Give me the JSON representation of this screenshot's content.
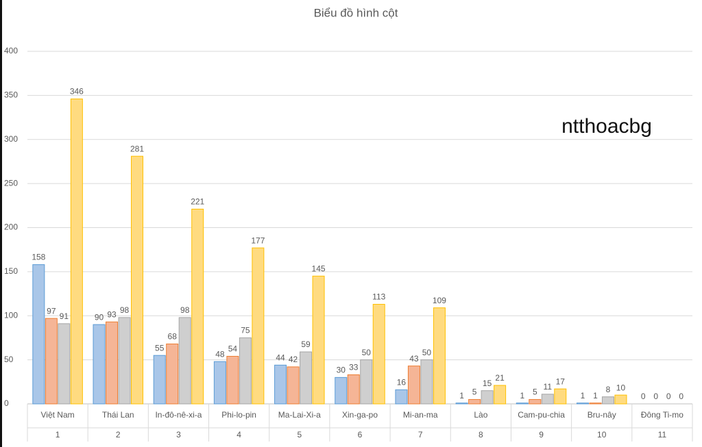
{
  "chart_data": {
    "type": "bar",
    "title": "Biểu đồ hình cột",
    "annotation": "ntthoacbg",
    "categories": [
      "Việt Nam",
      "Thái Lan",
      "In-đô-nê-xi-a",
      "Phi-lo-pin",
      "Ma-Lai-Xi-a",
      "Xin-ga-po",
      "Mi-an-ma",
      "Lào",
      "Cam-pu-chia",
      "Bru-nây",
      "Đông Ti-mo"
    ],
    "category_numbers": [
      "1",
      "2",
      "3",
      "4",
      "5",
      "6",
      "7",
      "8",
      "9",
      "10",
      "11"
    ],
    "series": [
      {
        "color": "#a9c6e8",
        "edgecolor": "#5b9bd5",
        "values": [
          158,
          90,
          55,
          48,
          44,
          30,
          16,
          1,
          1,
          1,
          0
        ]
      },
      {
        "color": "#f5b596",
        "edgecolor": "#ed7d31",
        "values": [
          97,
          93,
          68,
          54,
          42,
          33,
          43,
          5,
          5,
          1,
          0
        ]
      },
      {
        "color": "#cfcfcf",
        "edgecolor": "#a5a5a5",
        "values": [
          91,
          98,
          98,
          75,
          59,
          50,
          50,
          15,
          11,
          8,
          0
        ]
      },
      {
        "color": "#ffdb80",
        "edgecolor": "#ffc000",
        "values": [
          346,
          281,
          221,
          177,
          145,
          113,
          109,
          21,
          17,
          10,
          0
        ]
      }
    ],
    "ylim": [
      0,
      400
    ],
    "yticks": [
      0,
      50,
      100,
      150,
      200,
      250,
      300,
      350,
      400
    ],
    "grid": true,
    "data_labels": true
  }
}
